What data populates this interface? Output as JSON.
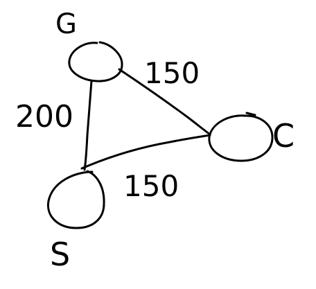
{
  "nodes": [
    {
      "id": "G",
      "label": "G"
    },
    {
      "id": "C",
      "label": "C"
    },
    {
      "id": "S",
      "label": "S"
    }
  ],
  "edges": [
    {
      "from": "G",
      "to": "C",
      "weight": "150"
    },
    {
      "from": "G",
      "to": "S",
      "weight": "200"
    },
    {
      "from": "S",
      "to": "C",
      "weight": "150"
    }
  ],
  "colors": {
    "ink": "#000000",
    "background": "#ffffff"
  }
}
